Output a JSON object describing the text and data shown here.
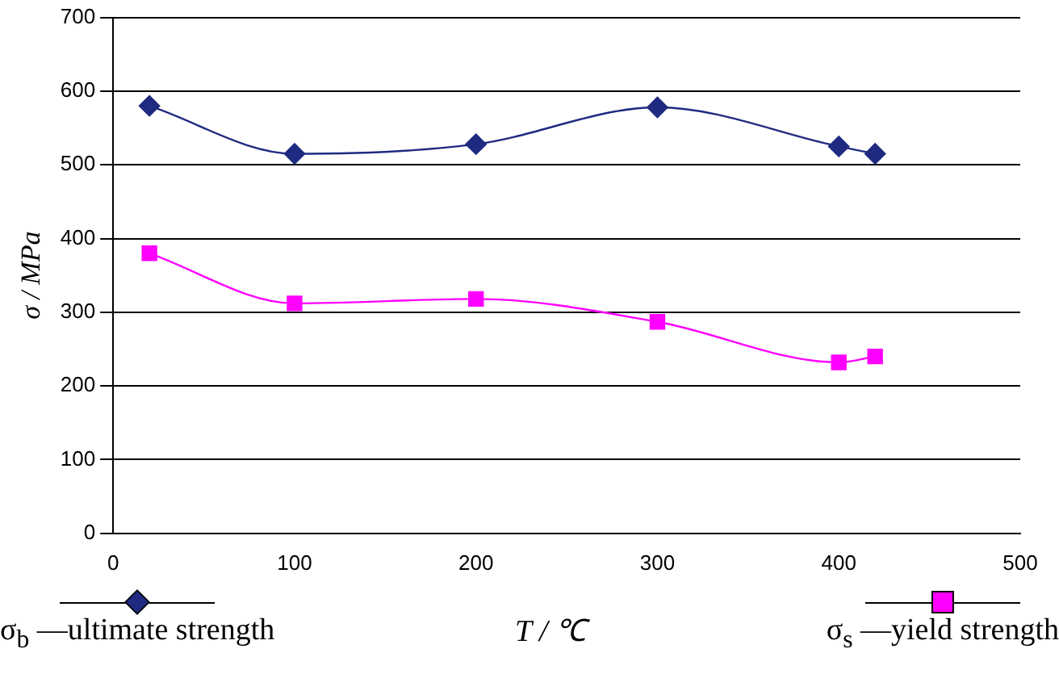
{
  "chart_data": {
    "type": "line",
    "xlabel": "T / ℃",
    "ylabel": "σ / MPa",
    "x": [
      20,
      100,
      200,
      300,
      400,
      420
    ],
    "series": [
      {
        "name": "σ$_{b}$ —ultimate strength",
        "color": "#1f2a80",
        "marker": "diamond",
        "values": [
          580,
          515,
          528,
          578,
          525,
          515
        ]
      },
      {
        "name": "σ$_{s}$ —yield strength",
        "color": "#ff00ff",
        "marker": "square",
        "values": [
          380,
          312,
          318,
          287,
          232,
          240
        ]
      }
    ],
    "xlim": [
      0,
      500
    ],
    "xticks": [
      0,
      100,
      200,
      300,
      400,
      500
    ],
    "ylim": [
      0,
      700
    ],
    "yticks": [
      0,
      100,
      200,
      300,
      400,
      500,
      600,
      700
    ],
    "grid": "y",
    "legend": "bottom"
  }
}
